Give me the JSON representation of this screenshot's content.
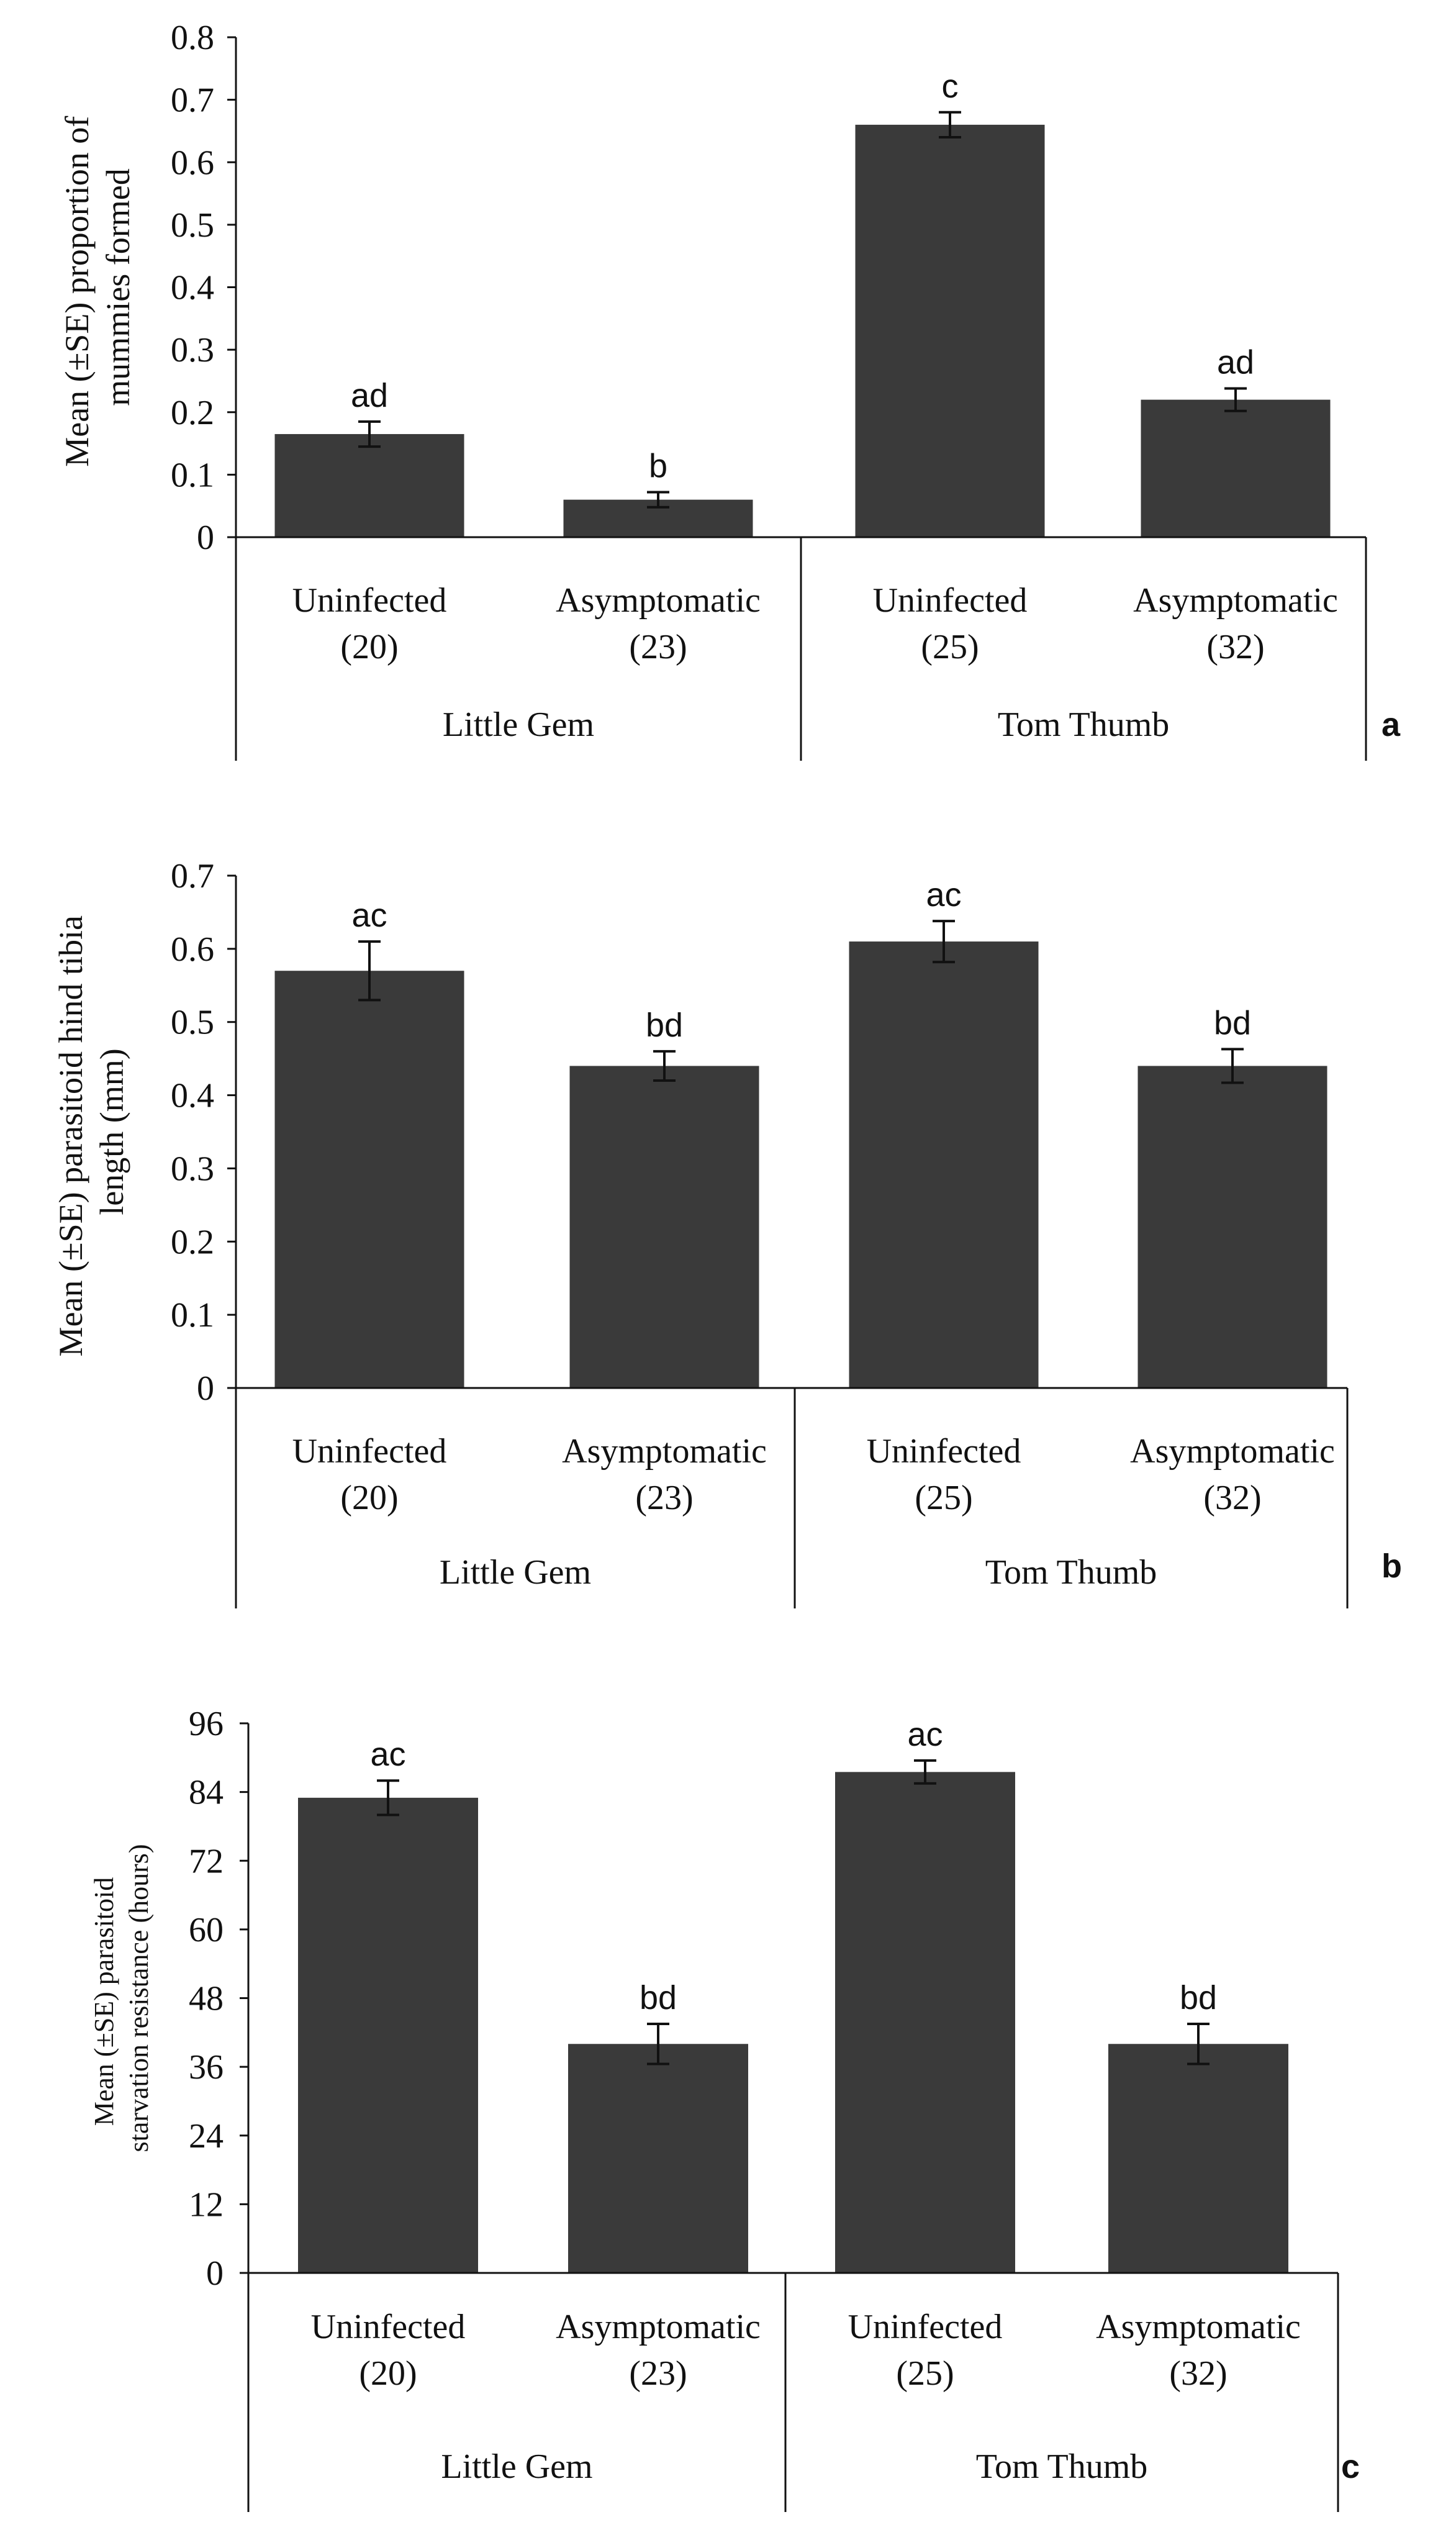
{
  "colors": {
    "bar": "#3a3a3a",
    "axis": "#111111",
    "background": "#ffffff"
  },
  "chart_data": [
    {
      "type": "bar",
      "panel_label": "a",
      "title": "",
      "ylabel_lines": [
        "Mean (±SE)  proportion of",
        "mummies formed"
      ],
      "ylim": [
        0,
        0.8
      ],
      "yticks": [
        0,
        0.1,
        0.2,
        0.3,
        0.4,
        0.5,
        0.6,
        0.7,
        0.8
      ],
      "ytick_labels": [
        "0",
        "0.1",
        "0.2",
        "0.3",
        "0.4",
        "0.5",
        "0.6",
        "0.7",
        "0.8"
      ],
      "grid": false,
      "categories": [
        "Uninfected",
        "Asymptomatic",
        "Uninfected",
        "Asymptomatic"
      ],
      "sample_sizes": [
        "(20)",
        "(23)",
        "(25)",
        "(32)"
      ],
      "groups": [
        {
          "name": "Little Gem",
          "span": [
            0,
            1
          ]
        },
        {
          "name": "Tom Thumb",
          "span": [
            2,
            3
          ]
        }
      ],
      "values": [
        0.165,
        0.06,
        0.66,
        0.22
      ],
      "errors": [
        0.02,
        0.012,
        0.02,
        0.018
      ],
      "significance": [
        "ad",
        "b",
        "c",
        "ad"
      ]
    },
    {
      "type": "bar",
      "panel_label": "b",
      "title": "",
      "ylabel_lines": [
        "Mean (±SE) parasitoid hind tibia",
        "length (mm)"
      ],
      "ylim": [
        0,
        0.7
      ],
      "yticks": [
        0,
        0.1,
        0.2,
        0.3,
        0.4,
        0.5,
        0.6,
        0.7
      ],
      "ytick_labels": [
        "0",
        "0.1",
        "0.2",
        "0.3",
        "0.4",
        "0.5",
        "0.6",
        "0.7"
      ],
      "grid": false,
      "categories": [
        "Uninfected",
        "Asymptomatic",
        "Uninfected",
        "Asymptomatic"
      ],
      "sample_sizes": [
        "(20)",
        "(23)",
        "(25)",
        "(32)"
      ],
      "groups": [
        {
          "name": "Little Gem",
          "span": [
            0,
            1
          ]
        },
        {
          "name": "Tom Thumb",
          "span": [
            2,
            3
          ]
        }
      ],
      "values": [
        0.57,
        0.44,
        0.61,
        0.44
      ],
      "errors": [
        0.04,
        0.02,
        0.028,
        0.023
      ],
      "significance": [
        "ac",
        "bd",
        "ac",
        "bd"
      ]
    },
    {
      "type": "bar",
      "panel_label": "c",
      "title": "",
      "ylabel_lines": [
        "Mean (±SE) parasitoid",
        "starvation resistance (hours)"
      ],
      "ylim": [
        0,
        96
      ],
      "yticks": [
        0,
        12,
        24,
        36,
        48,
        60,
        72,
        84,
        96
      ],
      "ytick_labels": [
        "0",
        "12",
        "24",
        "36",
        "48",
        "60",
        "72",
        "84",
        "96"
      ],
      "grid": false,
      "categories": [
        "Uninfected",
        "Asymptomatic",
        "Uninfected",
        "Asymptomatic"
      ],
      "sample_sizes": [
        "(20)",
        "(23)",
        "(25)",
        "(32)"
      ],
      "groups": [
        {
          "name": "Little Gem",
          "span": [
            0,
            1
          ]
        },
        {
          "name": "Tom Thumb",
          "span": [
            2,
            3
          ]
        }
      ],
      "values": [
        83,
        40,
        87.5,
        40
      ],
      "errors": [
        3,
        3.5,
        2,
        3.5
      ],
      "significance": [
        "ac",
        "bd",
        "ac",
        "bd"
      ]
    }
  ]
}
